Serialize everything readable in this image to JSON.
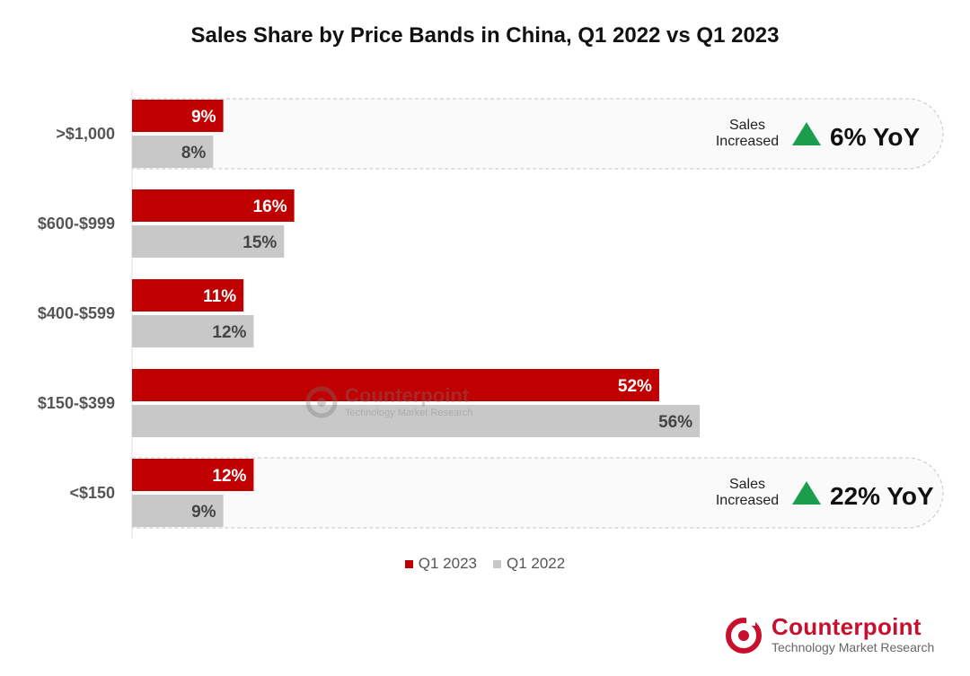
{
  "colors": {
    "q1_2023": "#c00000",
    "q1_2022": "#c8c8c8",
    "arrow": "#1a9e4b",
    "brand": "#c8102e"
  },
  "chart_data": {
    "type": "bar",
    "orientation": "horizontal",
    "title": "Sales Share by Price Bands in China, Q1 2022 vs Q1 2023",
    "categories": [
      ">$1,000",
      "$600-$999",
      "$400-$599",
      "$150-$399",
      "<$150"
    ],
    "series": [
      {
        "name": "Q1 2023",
        "values": [
          9,
          16,
          11,
          52,
          12
        ],
        "labels": [
          "9%",
          "16%",
          "11%",
          "52%",
          "12%"
        ]
      },
      {
        "name": "Q1 2022",
        "values": [
          8,
          15,
          12,
          56,
          9
        ],
        "labels": [
          "8%",
          "15%",
          "12%",
          "56%",
          "9%"
        ]
      }
    ],
    "xlim": [
      0,
      80
    ],
    "grid": false,
    "legend_position": "bottom",
    "annotations": [
      {
        "category": ">$1,000",
        "text_line1": "Sales",
        "text_line2": "Increased",
        "value_text": "6% YoY",
        "icon": "up-triangle-icon"
      },
      {
        "category": "<$150",
        "text_line1": "Sales",
        "text_line2": "Increased",
        "value_text": "22% YoY",
        "icon": "up-triangle-icon"
      }
    ]
  },
  "watermark": {
    "name": "Counterpoint",
    "subtitle": "Technology Market Research"
  },
  "logo": {
    "name": "Counterpoint",
    "subtitle": "Technology Market Research",
    "icon": "counterpoint-logo-icon"
  }
}
